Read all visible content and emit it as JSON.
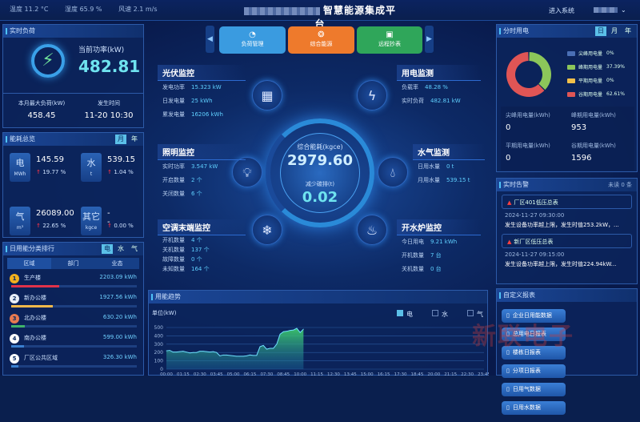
{
  "header": {
    "temperature": "温度 11.2 °C",
    "humidity": "湿度 65.9 %",
    "wind": "风速 2.1 m/s",
    "title": "智慧能源集成平台",
    "enter_system": "进入系统"
  },
  "nav": {
    "buttons": [
      {
        "label": "负荷管理",
        "icon": "gauge-icon",
        "color": "#3a9be0"
      },
      {
        "label": "综合能源",
        "icon": "energy-stack-icon",
        "color": "#ee7a2c"
      },
      {
        "label": "远程抄表",
        "icon": "meter-icon",
        "color": "#2fa65a"
      }
    ]
  },
  "realtime_load": {
    "title": "实时负荷",
    "current_label": "当前功率(kW)",
    "current_value": "482.81",
    "max_label": "本月最大负荷(kW)",
    "max_value": "458.45",
    "time_label": "发生时间",
    "time_value": "11-20 10:30"
  },
  "overview": {
    "title": "能耗总览",
    "tabs": [
      "月",
      "年"
    ],
    "active_tab": "月",
    "items": [
      {
        "name": "电",
        "unit": "MWh",
        "value": "145.59",
        "change": "19.77 %"
      },
      {
        "name": "水",
        "unit": "t",
        "value": "539.15",
        "change": "1.04 %"
      },
      {
        "name": "气",
        "unit": "m³",
        "value": "26089.00",
        "change": "22.65 %"
      },
      {
        "name": "其它",
        "unit": "kgce",
        "value": "--",
        "change": "0.00 %"
      }
    ]
  },
  "ranking": {
    "title": "日用能分类排行",
    "types": [
      "电",
      "水",
      "气"
    ],
    "active_type": "电",
    "tabs": [
      "区域",
      "部门",
      "业态"
    ],
    "active_tab": "区域",
    "items": [
      {
        "rank": "1",
        "name": "生产楼",
        "value": "2203.09 kWh",
        "kwh": 2203.09,
        "color": "#e0324a",
        "badge": "#f2b01e"
      },
      {
        "rank": "2",
        "name": "新办公楼",
        "value": "1927.56 kWh",
        "kwh": 1927.56,
        "color": "#f2b84a",
        "badge": "#e8eef8"
      },
      {
        "rank": "3",
        "name": "北办公楼",
        "value": "630.20 kWh",
        "kwh": 630.2,
        "color": "#3fb36a",
        "badge": "#e87a50"
      },
      {
        "rank": "4",
        "name": "南办公楼",
        "value": "599.00 kWh",
        "kwh": 599.0,
        "color": "#3a7fd0",
        "badge": "#ffffff"
      },
      {
        "rank": "5",
        "name": "厂区公共区域",
        "value": "326.30 kWh",
        "kwh": 326.3,
        "color": "#3a7fd0",
        "badge": "#ffffff"
      }
    ]
  },
  "center": {
    "total_label": "综合能耗(kgce)",
    "total_value": "2979.60",
    "carbon_label": "减少碳排(t)",
    "carbon_value": "0.02",
    "pv": {
      "title": "光伏监控",
      "rows": [
        [
          "发电功率",
          "15.323 kW"
        ],
        [
          "日发电量",
          "25 kWh"
        ],
        [
          "累发电量",
          "16206 kWh"
        ]
      ]
    },
    "lighting": {
      "title": "照明监控",
      "rows": [
        [
          "实时功率",
          "3.547 kW"
        ],
        [
          "开启数量",
          "2 个"
        ],
        [
          "关闭数量",
          "6 个"
        ]
      ]
    },
    "ac": {
      "title": "空调末端监控",
      "rows": [
        [
          "开机数量",
          "4 个"
        ],
        [
          "关机数量",
          "137 个"
        ],
        [
          "故障数量",
          "0 个"
        ],
        [
          "未知数量",
          "164 个"
        ]
      ]
    },
    "power": {
      "title": "用电监测",
      "rows": [
        [
          "负载率",
          "48.28 %"
        ],
        [
          "实时负荷",
          "482.81 kW"
        ]
      ]
    },
    "water": {
      "title": "水气监测",
      "rows": [
        [
          "日用水量",
          "0 t"
        ],
        [
          "月用水量",
          "539.15 t"
        ]
      ]
    },
    "boiler": {
      "title": "开水炉监控",
      "rows": [
        [
          "今日用电",
          "9.21 kWh"
        ],
        [
          "开机数量",
          "7 台"
        ],
        [
          "关机数量",
          "0 台"
        ]
      ]
    }
  },
  "tou": {
    "title": "分时用电",
    "tabs": [
      "日",
      "月",
      "年"
    ],
    "active_tab": "日",
    "legend": [
      {
        "label": "尖峰用电量",
        "pct": "0%",
        "value": 0,
        "color": "#4a6fb5"
      },
      {
        "label": "峰期用电量",
        "pct": "37.39%",
        "value": 37.39,
        "color": "#8cc65a"
      },
      {
        "label": "平期用电量",
        "pct": "0%",
        "value": 0,
        "color": "#f2c04a"
      },
      {
        "label": "谷期用电量",
        "pct": "62.61%",
        "value": 62.61,
        "color": "#e05555"
      }
    ],
    "stats": [
      {
        "label": "尖峰用电量(kWh)",
        "value": "0"
      },
      {
        "label": "峰期用电量(kWh)",
        "value": "953"
      },
      {
        "label": "平期用电量(kWh)",
        "value": "0"
      },
      {
        "label": "谷期用电量(kWh)",
        "value": "1596"
      }
    ]
  },
  "alarms": {
    "title": "实时告警",
    "unread": "未读 0 条",
    "items": [
      {
        "device": "厂区401低压总表",
        "time": "2024-11-27 09:30:00",
        "message": "发生设备功率越上限，发生时值253.2kW，..."
      },
      {
        "device": "新厂区低压总表",
        "time": "2024-11-27 09:15:00",
        "message": "发生设备功率越上限，发生时值224.94kW..."
      }
    ]
  },
  "reports": {
    "title": "自定义报表",
    "buttons": [
      "企业日用能数据",
      "总用电日报表",
      "楼栋日报表",
      "分项日报表",
      "日用气数据",
      "日用水数据"
    ]
  },
  "chart_data": {
    "type": "area",
    "title": "用能趋势",
    "ylabel": "单位(kW)",
    "ylim": [
      0,
      500
    ],
    "yticks": [
      0,
      100,
      200,
      300,
      400,
      500
    ],
    "grid": true,
    "legend_placement": "top-right",
    "legend": [
      {
        "name": "电",
        "active": true,
        "color": "#5bc0e8"
      },
      {
        "name": "水",
        "active": false
      },
      {
        "name": "气",
        "active": false
      }
    ],
    "xticks": [
      "00:00",
      "01:15",
      "02:30",
      "03:45",
      "05:00",
      "06:15",
      "07:30",
      "08:45",
      "10:00",
      "11:15",
      "12:30",
      "13:45",
      "15:00",
      "16:15",
      "17:30",
      "18:45",
      "20:00",
      "21:15",
      "22:30",
      "23:45"
    ],
    "series": [
      {
        "name": "电",
        "x_minutes_step": 15,
        "values": [
          220,
          225,
          205,
          205,
          210,
          215,
          205,
          195,
          200,
          200,
          215,
          215,
          210,
          205,
          210,
          200,
          160,
          170,
          170,
          165,
          160,
          155,
          155,
          155,
          160,
          170,
          165,
          165,
          270,
          285,
          240,
          250,
          250,
          300,
          420,
          450,
          455,
          465,
          470,
          490,
          440,
          480
        ]
      }
    ]
  }
}
